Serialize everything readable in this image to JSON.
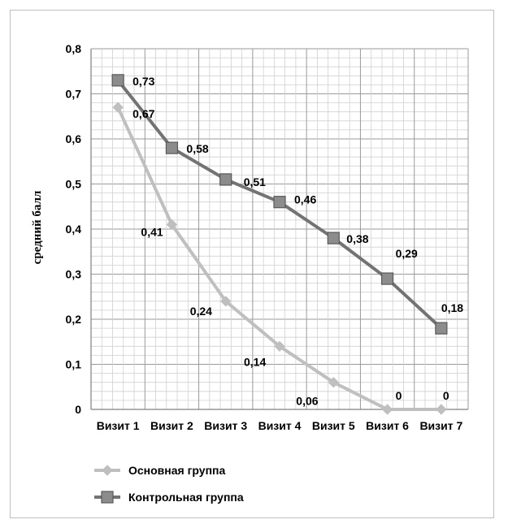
{
  "chart_data": {
    "type": "line",
    "categories": [
      "Визит 1",
      "Визит 2",
      "Визит 3",
      "Визит 4",
      "Визит 5",
      "Визит 6",
      "Визит 7"
    ],
    "series": [
      {
        "name": "Основная группа",
        "values": [
          0.67,
          0.41,
          0.24,
          0.14,
          0.06,
          0,
          0
        ],
        "labels": [
          "0,67",
          "0,41",
          "0,24",
          "0,14",
          "0,06",
          "0",
          "0"
        ],
        "color": "#bfbfbf",
        "marker": "diamond"
      },
      {
        "name": "Контрольная группа",
        "values": [
          0.73,
          0.58,
          0.51,
          0.46,
          0.38,
          0.29,
          0.18
        ],
        "labels": [
          "0,73",
          "0,58",
          "0,51",
          "0,46",
          "0,38",
          "0,29",
          "0,18"
        ],
        "color": "#737373",
        "marker": "square"
      }
    ],
    "ylabel": "средний балл",
    "xlabel": "",
    "ylim": [
      0,
      0.8
    ],
    "yticks": [
      "0",
      "0,1",
      "0,2",
      "0,3",
      "0,4",
      "0,5",
      "0,6",
      "0,7",
      "0,8"
    ],
    "grid": true,
    "legend_position": "bottom-left"
  }
}
